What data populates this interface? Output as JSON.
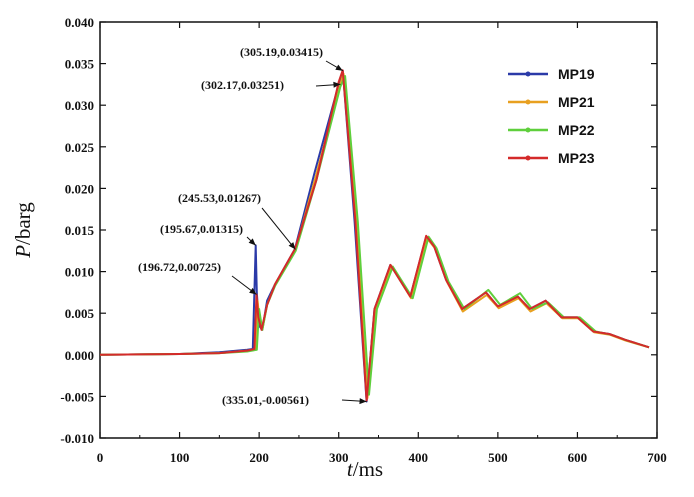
{
  "chart_data": {
    "type": "line",
    "xlabel": {
      "var": "t",
      "unit": "/ms"
    },
    "ylabel": {
      "var": "P",
      "unit": "/barg"
    },
    "xlim": [
      0,
      700
    ],
    "ylim": [
      -0.01,
      0.04
    ],
    "xticks": [
      0,
      100,
      200,
      300,
      400,
      500,
      600,
      700
    ],
    "xtick_labels": [
      "0",
      "100",
      "200",
      "300",
      "400",
      "500",
      "600",
      "700"
    ],
    "yticks": [
      -0.01,
      -0.005,
      0,
      0.005,
      0.01,
      0.015,
      0.02,
      0.025,
      0.03,
      0.035,
      0.04
    ],
    "ytick_labels": [
      "-0.010",
      "-0.005",
      "0.000",
      "0.005",
      "0.010",
      "0.015",
      "0.020",
      "0.025",
      "0.030",
      "0.035",
      "0.040"
    ],
    "grid": false,
    "legend_position": "top-right",
    "series": [
      {
        "name": "MP19",
        "color": "#2b3aa8",
        "x": [
          0,
          100,
          150,
          185,
          192,
          195.67,
          197,
          200,
          204,
          210,
          220,
          245,
          270,
          300,
          305.19,
          320,
          335.01,
          345,
          365,
          390,
          410,
          420,
          435,
          455,
          485,
          500,
          525,
          540,
          560,
          580,
          600,
          620,
          640,
          660,
          690
        ],
        "y": [
          0,
          0.0001,
          0.0003,
          0.0006,
          0.0007,
          0.01315,
          0.0075,
          0.0035,
          0.003,
          0.0065,
          0.0085,
          0.0127,
          0.022,
          0.0325,
          0.03415,
          0.016,
          -0.00561,
          0.0055,
          0.0108,
          0.007,
          0.0142,
          0.013,
          0.009,
          0.0055,
          0.0075,
          0.0058,
          0.007,
          0.0055,
          0.0065,
          0.0045,
          0.0045,
          0.0028,
          0.0025,
          0.0018,
          0.0009
        ]
      },
      {
        "name": "MP21",
        "color": "#e8a020",
        "x": [
          0,
          100,
          150,
          185,
          195,
          198,
          200,
          204,
          210,
          220,
          245.53,
          270,
          302.17,
          306,
          322,
          336,
          346,
          366,
          391,
          411,
          421,
          436,
          456,
          486,
          501,
          526,
          541,
          561,
          581,
          601,
          621,
          641,
          661,
          690
        ],
        "y": [
          0,
          0.0001,
          0.0002,
          0.0005,
          0.0006,
          0.0065,
          0.0045,
          0.003,
          0.006,
          0.0085,
          0.01267,
          0.021,
          0.03251,
          0.0338,
          0.016,
          -0.0052,
          0.0055,
          0.0107,
          0.0068,
          0.014,
          0.0128,
          0.0088,
          0.0052,
          0.0072,
          0.0056,
          0.0068,
          0.0052,
          0.0062,
          0.0044,
          0.0044,
          0.0027,
          0.0024,
          0.0017,
          0.0009
        ]
      },
      {
        "name": "MP22",
        "color": "#5fcf3c",
        "x": [
          0,
          100,
          150,
          185,
          197,
          200,
          204,
          210,
          220,
          246,
          272,
          302,
          308,
          324,
          338,
          348,
          368,
          393,
          413,
          423,
          438,
          458,
          488,
          503,
          528,
          543,
          563,
          583,
          603,
          623,
          643,
          663,
          690
        ],
        "y": [
          0,
          0.0001,
          0.0002,
          0.0004,
          0.0006,
          0.0055,
          0.003,
          0.006,
          0.0083,
          0.0125,
          0.021,
          0.0322,
          0.0335,
          0.016,
          -0.0048,
          0.0055,
          0.0106,
          0.0068,
          0.0142,
          0.0128,
          0.0088,
          0.0055,
          0.0078,
          0.006,
          0.0074,
          0.0055,
          0.0063,
          0.0045,
          0.0045,
          0.0028,
          0.0024,
          0.0017,
          0.0009
        ]
      },
      {
        "name": "MP23",
        "color": "#d42a2a",
        "x": [
          0,
          100,
          150,
          185,
          194,
          196.72,
          199,
          203,
          210,
          220,
          245,
          272,
          300,
          305,
          321,
          335,
          345,
          365,
          390,
          410,
          420,
          435,
          455,
          485,
          500,
          525,
          540,
          560,
          580,
          600,
          620,
          640,
          660,
          690
        ],
        "y": [
          0,
          0.0001,
          0.0002,
          0.0005,
          0.0007,
          0.00725,
          0.0045,
          0.003,
          0.006,
          0.0085,
          0.0127,
          0.021,
          0.0328,
          0.0342,
          0.016,
          -0.0055,
          0.0055,
          0.0108,
          0.007,
          0.0143,
          0.013,
          0.009,
          0.0055,
          0.0075,
          0.0058,
          0.007,
          0.0055,
          0.0065,
          0.0045,
          0.0045,
          0.0028,
          0.0025,
          0.0018,
          0.0009
        ]
      }
    ],
    "annotations": [
      {
        "text": "(305.19,0.03415)",
        "point": [
          305.19,
          0.03415
        ]
      },
      {
        "text": "(302.17,0.03251)",
        "point": [
          302.17,
          0.03251
        ]
      },
      {
        "text": "(245.53,0.01267)",
        "point": [
          245.53,
          0.01267
        ]
      },
      {
        "text": "(195.67,0.01315)",
        "point": [
          195.67,
          0.01315
        ]
      },
      {
        "text": "(196.72,0.00725)",
        "point": [
          196.72,
          0.00725
        ]
      },
      {
        "text": "(335.01,-0.00561)",
        "point": [
          335.01,
          -0.00561
        ]
      }
    ]
  }
}
